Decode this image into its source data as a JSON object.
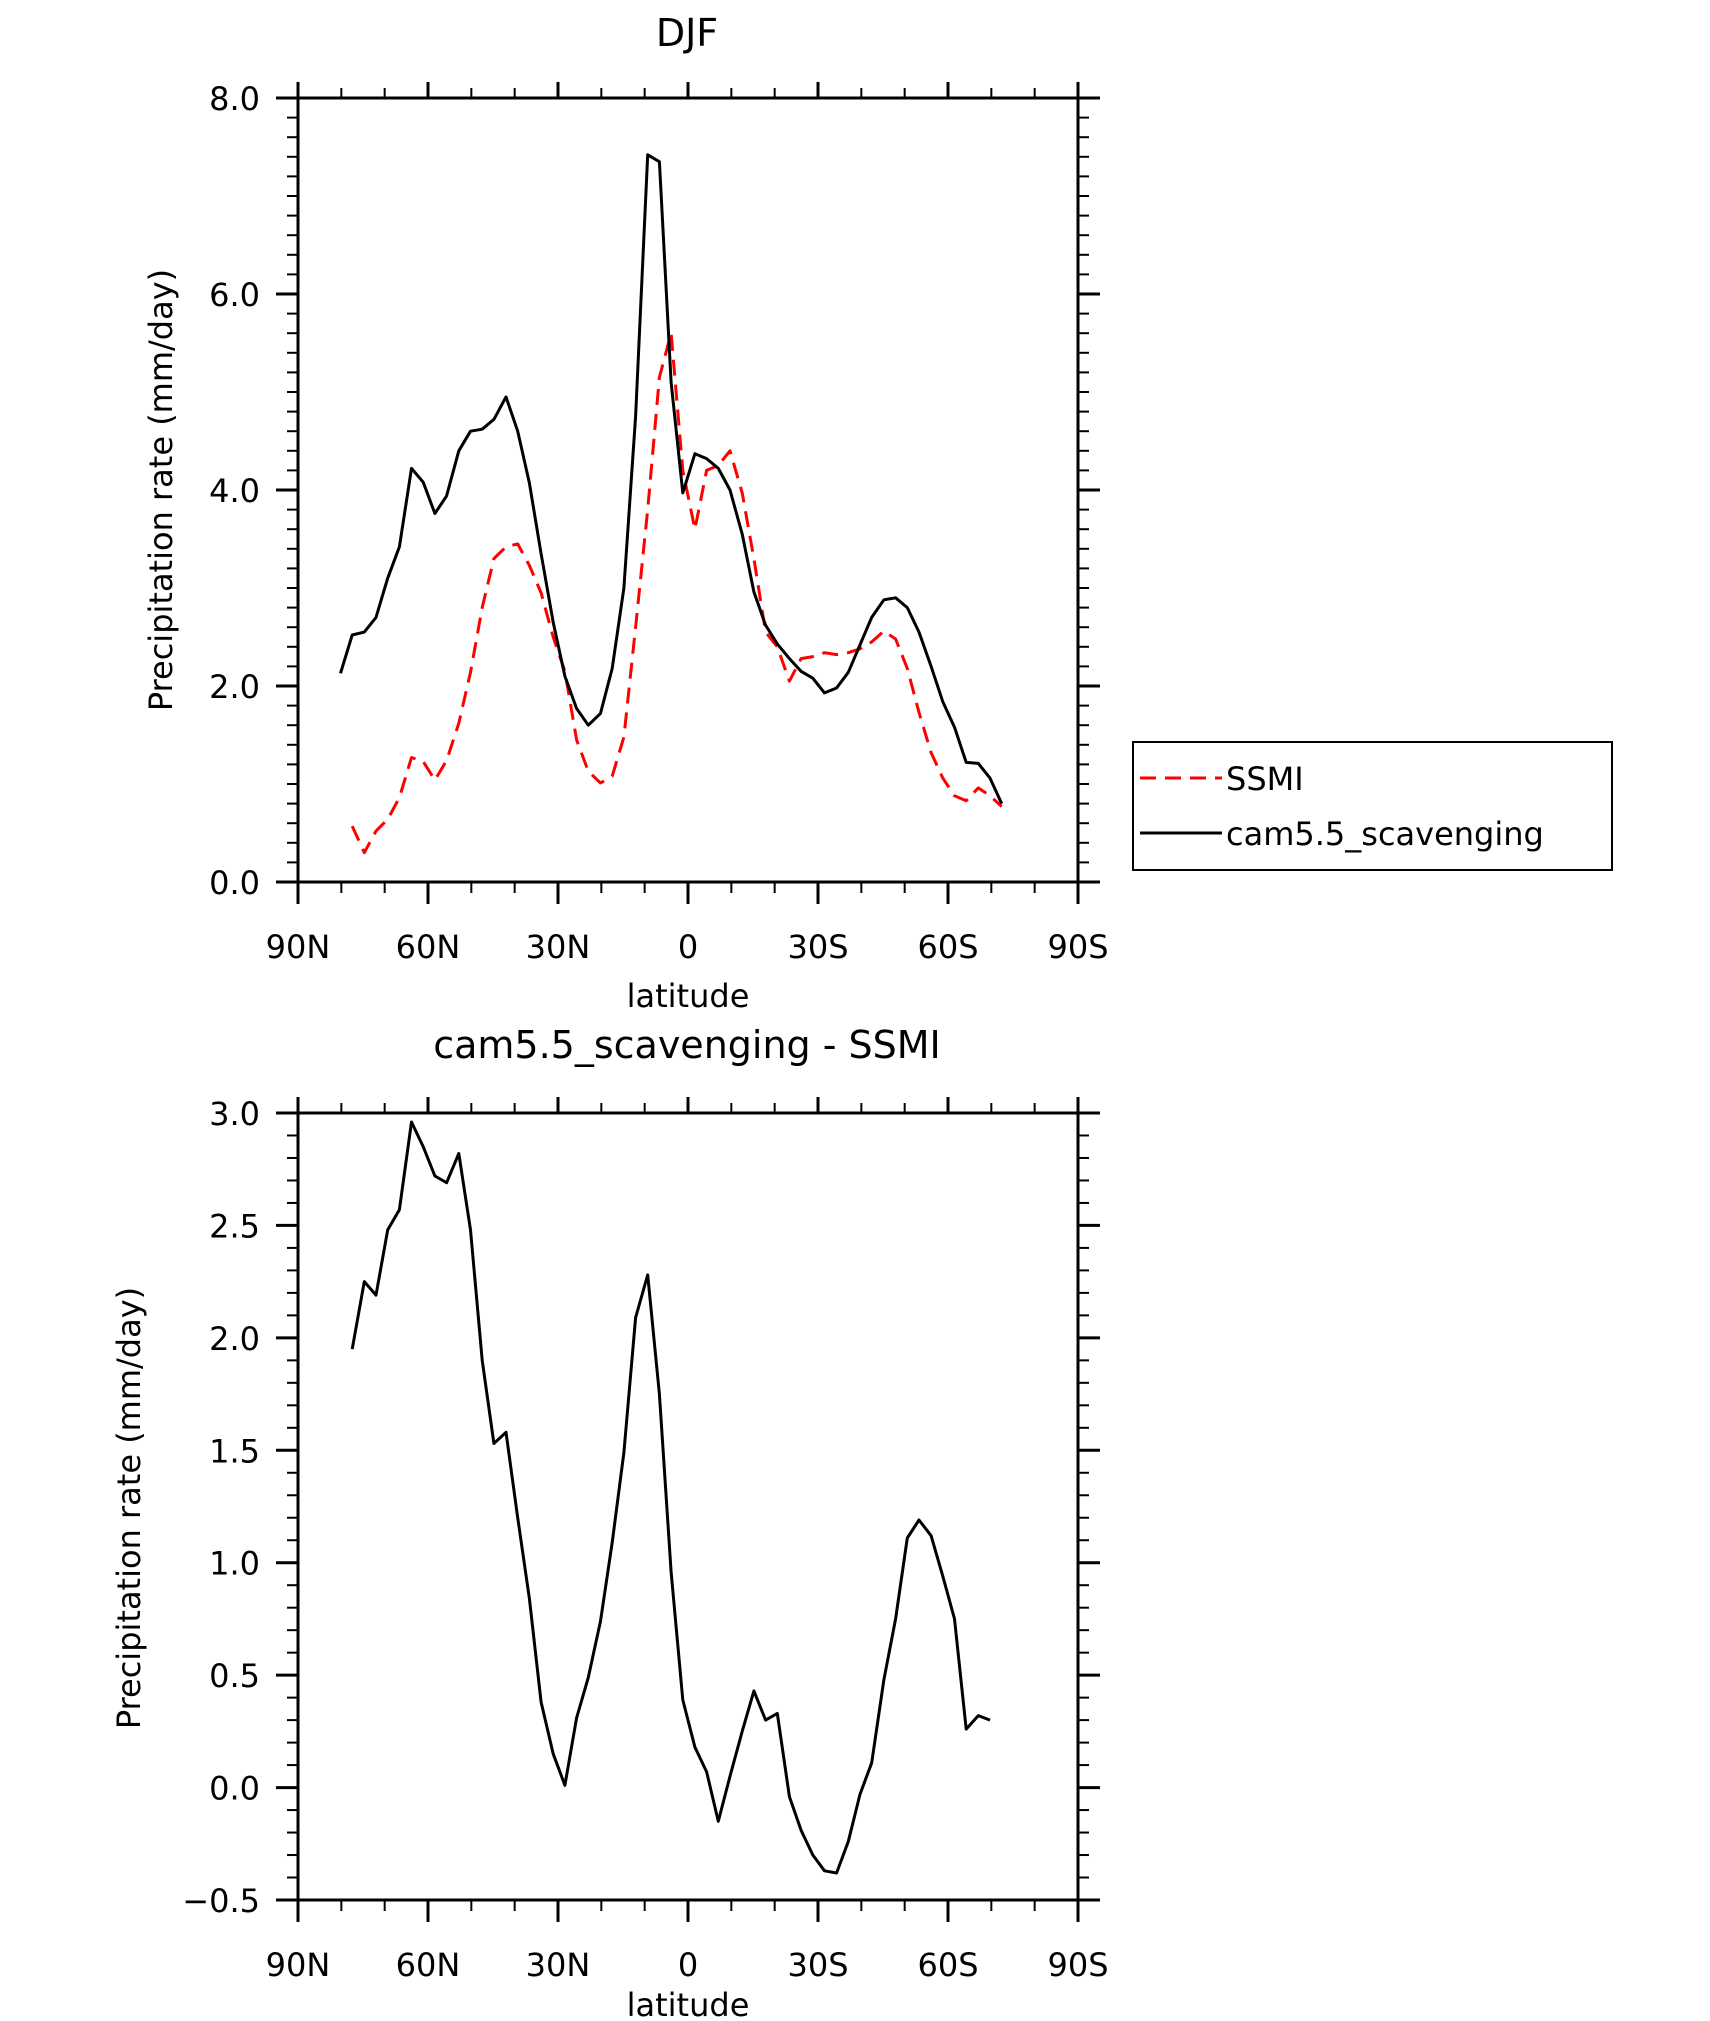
{
  "chart_data": [
    {
      "type": "line",
      "title": "DJF",
      "xlabel": "latitude",
      "ylabel": "Precipitation rate (mm/day)",
      "xlim": [
        90,
        -90
      ],
      "ylim": [
        0,
        8
      ],
      "x_ticks": [
        {
          "value": 90,
          "label": "90N"
        },
        {
          "value": 60,
          "label": "60N"
        },
        {
          "value": 30,
          "label": "30N"
        },
        {
          "value": 0,
          "label": "0"
        },
        {
          "value": -30,
          "label": "30S"
        },
        {
          "value": -60,
          "label": "60S"
        },
        {
          "value": -90,
          "label": "90S"
        }
      ],
      "y_ticks": [
        {
          "value": 0,
          "label": "0.0"
        },
        {
          "value": 2,
          "label": "2.0"
        },
        {
          "value": 4,
          "label": "4.0"
        },
        {
          "value": 6,
          "label": "6.0"
        },
        {
          "value": 8,
          "label": "8.0"
        }
      ],
      "legend": "right",
      "series": [
        {
          "name": "SSMI",
          "color": "#ff0000",
          "dash": "dashed",
          "points": [
            [
              77.5,
              0.57
            ],
            [
              74.7,
              0.3
            ],
            [
              72,
              0.52
            ],
            [
              69.3,
              0.64
            ],
            [
              66.6,
              0.86
            ],
            [
              63.8,
              1.27
            ],
            [
              61.1,
              1.23
            ],
            [
              58.4,
              1.04
            ],
            [
              55.7,
              1.24
            ],
            [
              52.9,
              1.62
            ],
            [
              50.2,
              2.14
            ],
            [
              47.5,
              2.8
            ],
            [
              44.8,
              3.3
            ],
            [
              42,
              3.42
            ],
            [
              39.3,
              3.45
            ],
            [
              36.6,
              3.23
            ],
            [
              33.9,
              2.95
            ],
            [
              31.1,
              2.5
            ],
            [
              28.4,
              2.15
            ],
            [
              25.7,
              1.45
            ],
            [
              23,
              1.13
            ],
            [
              20.2,
              1.01
            ],
            [
              17.5,
              1.08
            ],
            [
              14.8,
              1.48
            ],
            [
              12.1,
              2.6
            ],
            [
              9.3,
              3.8
            ],
            [
              6.6,
              5.15
            ],
            [
              3.9,
              5.6
            ],
            [
              1.2,
              4.2
            ],
            [
              -1.6,
              3.6
            ],
            [
              -4.3,
              4.2
            ],
            [
              -7,
              4.25
            ],
            [
              -9.7,
              4.4
            ],
            [
              -12.5,
              3.97
            ],
            [
              -15.2,
              3.3
            ],
            [
              -17.9,
              2.55
            ],
            [
              -20.6,
              2.4
            ],
            [
              -23.4,
              2.05
            ],
            [
              -26.1,
              2.28
            ],
            [
              -28.8,
              2.3
            ],
            [
              -31.5,
              2.34
            ],
            [
              -34.3,
              2.32
            ],
            [
              -37,
              2.34
            ],
            [
              -39.7,
              2.38
            ],
            [
              -42.4,
              2.45
            ],
            [
              -45.2,
              2.56
            ],
            [
              -47.9,
              2.48
            ],
            [
              -50.6,
              2.18
            ],
            [
              -53.3,
              1.73
            ],
            [
              -56.1,
              1.32
            ],
            [
              -58.8,
              1.06
            ],
            [
              -61.5,
              0.88
            ],
            [
              -64.2,
              0.83
            ],
            [
              -67,
              0.96
            ],
            [
              -69.7,
              0.88
            ],
            [
              -72.4,
              0.77
            ]
          ]
        },
        {
          "name": "cam5.5_scavenging",
          "color": "#000000",
          "dash": "solid",
          "points": [
            [
              80.2,
              2.13
            ],
            [
              77.5,
              2.52
            ],
            [
              74.7,
              2.55
            ],
            [
              72,
              2.7
            ],
            [
              69.3,
              3.1
            ],
            [
              66.6,
              3.42
            ],
            [
              63.8,
              4.22
            ],
            [
              61.1,
              4.08
            ],
            [
              58.4,
              3.76
            ],
            [
              55.7,
              3.94
            ],
            [
              52.9,
              4.4
            ],
            [
              50.2,
              4.6
            ],
            [
              47.5,
              4.62
            ],
            [
              44.8,
              4.72
            ],
            [
              42,
              4.95
            ],
            [
              39.3,
              4.6
            ],
            [
              36.6,
              4.07
            ],
            [
              33.9,
              3.35
            ],
            [
              31.1,
              2.65
            ],
            [
              28.4,
              2.1
            ],
            [
              25.7,
              1.77
            ],
            [
              23,
              1.6
            ],
            [
              20.2,
              1.72
            ],
            [
              17.5,
              2.18
            ],
            [
              14.8,
              3.0
            ],
            [
              12.1,
              4.75
            ],
            [
              9.3,
              7.42
            ],
            [
              6.6,
              7.35
            ],
            [
              3.9,
              5.1
            ],
            [
              1.2,
              3.97
            ],
            [
              -1.6,
              4.37
            ],
            [
              -4.3,
              4.32
            ],
            [
              -7,
              4.22
            ],
            [
              -9.7,
              4.0
            ],
            [
              -12.5,
              3.55
            ],
            [
              -15.2,
              2.96
            ],
            [
              -17.9,
              2.62
            ],
            [
              -20.6,
              2.43
            ],
            [
              -23.4,
              2.28
            ],
            [
              -26.1,
              2.15
            ],
            [
              -28.8,
              2.08
            ],
            [
              -31.5,
              1.93
            ],
            [
              -34.3,
              1.98
            ],
            [
              -37,
              2.14
            ],
            [
              -39.7,
              2.42
            ],
            [
              -42.4,
              2.7
            ],
            [
              -45.2,
              2.88
            ],
            [
              -47.9,
              2.9
            ],
            [
              -50.6,
              2.8
            ],
            [
              -53.3,
              2.55
            ],
            [
              -56.1,
              2.2
            ],
            [
              -58.8,
              1.84
            ],
            [
              -61.5,
              1.58
            ],
            [
              -64.2,
              1.22
            ],
            [
              -67,
              1.21
            ],
            [
              -69.7,
              1.06
            ],
            [
              -72.4,
              0.8
            ]
          ]
        }
      ]
    },
    {
      "type": "line",
      "title": "cam5.5_scavenging - SSMI",
      "xlabel": "latitude",
      "ylabel": "Precipitation rate (mm/day)",
      "xlim": [
        90,
        -90
      ],
      "ylim": [
        -0.5,
        3.0
      ],
      "x_ticks": [
        {
          "value": 90,
          "label": "90N"
        },
        {
          "value": 60,
          "label": "60N"
        },
        {
          "value": 30,
          "label": "30N"
        },
        {
          "value": 0,
          "label": "0"
        },
        {
          "value": -30,
          "label": "30S"
        },
        {
          "value": -60,
          "label": "60S"
        },
        {
          "value": -90,
          "label": "90S"
        }
      ],
      "y_ticks": [
        {
          "value": -0.5,
          "label": "−0.5"
        },
        {
          "value": 0,
          "label": "0.0"
        },
        {
          "value": 0.5,
          "label": "0.5"
        },
        {
          "value": 1.0,
          "label": "1.0"
        },
        {
          "value": 1.5,
          "label": "1.5"
        },
        {
          "value": 2.0,
          "label": "2.0"
        },
        {
          "value": 2.5,
          "label": "2.5"
        },
        {
          "value": 3.0,
          "label": "3.0"
        }
      ],
      "series": [
        {
          "name": "cam5.5_scavenging - SSMI",
          "color": "#000000",
          "dash": "solid",
          "points": [
            [
              77.5,
              1.95
            ],
            [
              74.7,
              2.25
            ],
            [
              72,
              2.19
            ],
            [
              69.3,
              2.48
            ],
            [
              66.6,
              2.57
            ],
            [
              63.8,
              2.96
            ],
            [
              61.1,
              2.85
            ],
            [
              58.4,
              2.72
            ],
            [
              55.7,
              2.69
            ],
            [
              52.9,
              2.82
            ],
            [
              50.2,
              2.48
            ],
            [
              47.5,
              1.9
            ],
            [
              44.8,
              1.53
            ],
            [
              42,
              1.58
            ],
            [
              39.3,
              1.2
            ],
            [
              36.6,
              0.84
            ],
            [
              33.9,
              0.38
            ],
            [
              31.1,
              0.15
            ],
            [
              28.4,
              0.01
            ],
            [
              25.7,
              0.31
            ],
            [
              23,
              0.49
            ],
            [
              20.2,
              0.74
            ],
            [
              17.5,
              1.09
            ],
            [
              14.8,
              1.49
            ],
            [
              12.1,
              2.09
            ],
            [
              9.3,
              2.28
            ],
            [
              6.6,
              1.75
            ],
            [
              3.9,
              0.96
            ],
            [
              1.2,
              0.39
            ],
            [
              -1.6,
              0.18
            ],
            [
              -4.3,
              0.07
            ],
            [
              -7,
              -0.15
            ],
            [
              -9.7,
              0.05
            ],
            [
              -12.5,
              0.25
            ],
            [
              -15.2,
              0.43
            ],
            [
              -17.9,
              0.3
            ],
            [
              -20.6,
              0.33
            ],
            [
              -23.4,
              -0.04
            ],
            [
              -26.1,
              -0.19
            ],
            [
              -28.8,
              -0.3
            ],
            [
              -31.5,
              -0.37
            ],
            [
              -34.3,
              -0.38
            ],
            [
              -37,
              -0.24
            ],
            [
              -39.7,
              -0.03
            ],
            [
              -42.4,
              0.11
            ],
            [
              -45.2,
              0.48
            ],
            [
              -47.9,
              0.75
            ],
            [
              -50.6,
              1.11
            ],
            [
              -53.3,
              1.19
            ],
            [
              -56.1,
              1.12
            ],
            [
              -58.8,
              0.94
            ],
            [
              -61.5,
              0.75
            ],
            [
              -64.2,
              0.26
            ],
            [
              -67,
              0.32
            ],
            [
              -69.7,
              0.3
            ]
          ]
        }
      ]
    }
  ]
}
